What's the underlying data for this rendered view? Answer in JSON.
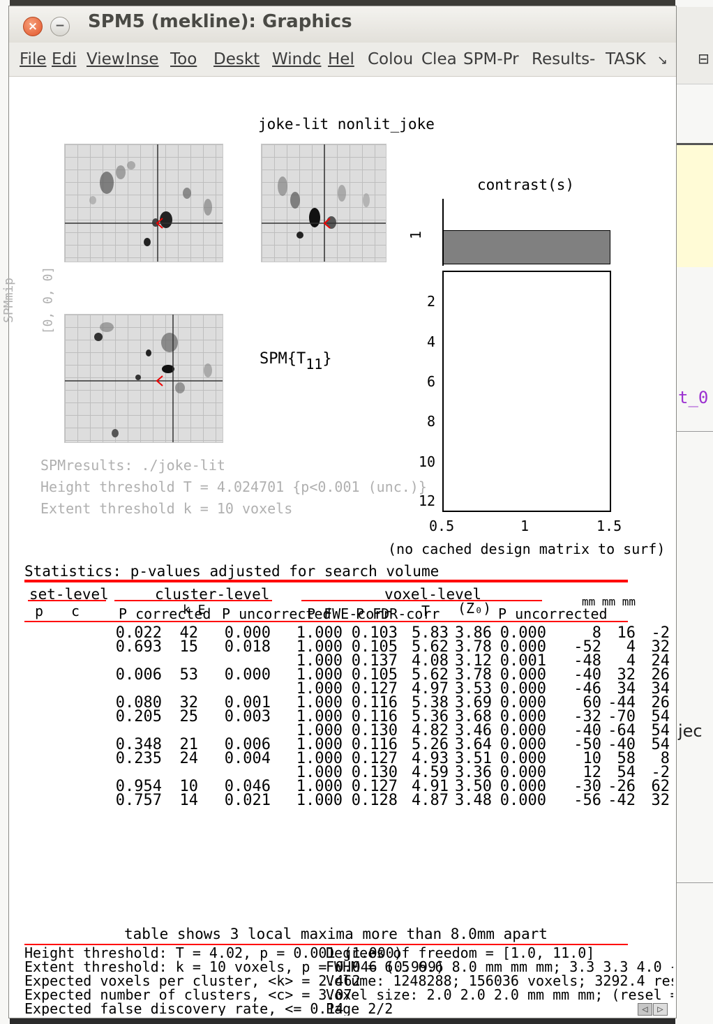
{
  "window": {
    "title": "SPM5 (mekline): Graphics",
    "close_symbol": "×",
    "minimize_symbol": "−"
  },
  "menu": [
    "File",
    "Edi",
    "View",
    "Inse",
    "Too",
    "Deskt",
    "Windc",
    "Hel",
    "Colou",
    "Clea",
    "SPM-Pr",
    "Results-",
    "TASK"
  ],
  "menu_arrow": "↘",
  "figure": {
    "contrast_title": "joke-lit nonlit_joke",
    "spm_label": "SPM{T",
    "spm_sub": "11",
    "spm_close": "}",
    "mip_label_rot": "SPMmip",
    "mip_coord_rot": "[0, 0, 0]",
    "contrasts_title": "contrast(s)",
    "contrast_tick": "1",
    "design_yticks": [
      "2",
      "4",
      "6",
      "8",
      "10",
      "12"
    ],
    "design_xticks": [
      "0.5",
      "1",
      "1.5"
    ],
    "design_caption": "(no cached design matrix to surf)",
    "results_path": "SPMresults: ./joke-lit",
    "height_thresh": "Height threshold T = 4.024701  {p<0.001 (unc.)}",
    "extent_thresh": "Extent threshold k = 10 voxels"
  },
  "stats": {
    "heading": "Statistics:  p-values adjusted for search volume",
    "set_level": "set-level",
    "cluster_level": "cluster-level",
    "voxel_level": "voxel-level",
    "mm_header": "mm mm mm",
    "sub_p": "p",
    "sub_c": "c",
    "sub_p_corrected": "P corrected",
    "sub_ke": "k E",
    "sub_p_uncorrected": "P uncorrected",
    "sub_fwe": "P FWE-corr",
    "sub_fdr": "P FDR-corr",
    "sub_t": "T",
    "sub_z": "(Z₀)",
    "sub_voxel_unc": "P uncorrected",
    "rows": [
      {
        "pc": "0.022",
        "k": "42",
        "pu": "0.000",
        "fwe": "1.000",
        "fdr": "0.103",
        "t": "5.83",
        "z": "3.86",
        "pv": "0.000",
        "x": "8",
        "y": "16",
        "zc": "-2"
      },
      {
        "pc": "0.693",
        "k": "15",
        "pu": "0.018",
        "fwe": "1.000",
        "fdr": "0.105",
        "t": "5.62",
        "z": "3.78",
        "pv": "0.000",
        "x": "-52",
        "y": "4",
        "zc": "32"
      },
      {
        "pc": "",
        "k": "",
        "pu": "",
        "fwe": "1.000",
        "fdr": "0.137",
        "t": "4.08",
        "z": "3.12",
        "pv": "0.001",
        "x": "-48",
        "y": "4",
        "zc": "24"
      },
      {
        "pc": "0.006",
        "k": "53",
        "pu": "0.000",
        "fwe": "1.000",
        "fdr": "0.105",
        "t": "5.62",
        "z": "3.78",
        "pv": "0.000",
        "x": "-40",
        "y": "32",
        "zc": "26"
      },
      {
        "pc": "",
        "k": "",
        "pu": "",
        "fwe": "1.000",
        "fdr": "0.127",
        "t": "4.97",
        "z": "3.53",
        "pv": "0.000",
        "x": "-46",
        "y": "34",
        "zc": "34"
      },
      {
        "pc": "0.080",
        "k": "32",
        "pu": "0.001",
        "fwe": "1.000",
        "fdr": "0.116",
        "t": "5.38",
        "z": "3.69",
        "pv": "0.000",
        "x": "60",
        "y": "-44",
        "zc": "26"
      },
      {
        "pc": "0.205",
        "k": "25",
        "pu": "0.003",
        "fwe": "1.000",
        "fdr": "0.116",
        "t": "5.36",
        "z": "3.68",
        "pv": "0.000",
        "x": "-32",
        "y": "-70",
        "zc": "54"
      },
      {
        "pc": "",
        "k": "",
        "pu": "",
        "fwe": "1.000",
        "fdr": "0.130",
        "t": "4.82",
        "z": "3.46",
        "pv": "0.000",
        "x": "-40",
        "y": "-64",
        "zc": "54"
      },
      {
        "pc": "0.348",
        "k": "21",
        "pu": "0.006",
        "fwe": "1.000",
        "fdr": "0.116",
        "t": "5.26",
        "z": "3.64",
        "pv": "0.000",
        "x": "-50",
        "y": "-40",
        "zc": "54"
      },
      {
        "pc": "0.235",
        "k": "24",
        "pu": "0.004",
        "fwe": "1.000",
        "fdr": "0.127",
        "t": "4.93",
        "z": "3.51",
        "pv": "0.000",
        "x": "10",
        "y": "58",
        "zc": "8"
      },
      {
        "pc": "",
        "k": "",
        "pu": "",
        "fwe": "1.000",
        "fdr": "0.130",
        "t": "4.59",
        "z": "3.36",
        "pv": "0.000",
        "x": "12",
        "y": "54",
        "zc": "-2"
      },
      {
        "pc": "0.954",
        "k": "10",
        "pu": "0.046",
        "fwe": "1.000",
        "fdr": "0.127",
        "t": "4.91",
        "z": "3.50",
        "pv": "0.000",
        "x": "-30",
        "y": "-26",
        "zc": "62"
      },
      {
        "pc": "0.757",
        "k": "14",
        "pu": "0.021",
        "fwe": "1.000",
        "fdr": "0.128",
        "t": "4.87",
        "z": "3.48",
        "pv": "0.000",
        "x": "-56",
        "y": "-42",
        "zc": "32"
      }
    ],
    "footer_note": "table shows 3 local maxima more than 8.0mm apart",
    "footer_left": [
      "Height threshold: T = 4.02, p = 0.001 (1.000)",
      "Extent threshold: k = 10 voxels, p = 0.046 (0.999)",
      "Expected voxels per cluster, <k> = 2.462",
      "Expected number of clusters, <c> = 3.07",
      "Expected false discovery rate, <= 0.14"
    ],
    "footer_right": [
      "Degrees of freedom = [1.0, 11.0]",
      "FWHM = 6.5 6.6 8.0 mm mm mm; 3.3 3.3 4.0 {",
      "Volume: 1248288; 156036 voxels; 3292.4 res",
      "Voxel size: 2.0 2.0 2.0 mm mm mm; (resel =",
      "Page 2/2"
    ]
  },
  "pager": {
    "prev": "◁",
    "next": "▷"
  },
  "background_right": {
    "text1": "t_0",
    "text2": "jec"
  },
  "colors": {
    "red": "#ff0000",
    "bar_gray": "#808080",
    "purple": "#9b30d0"
  }
}
